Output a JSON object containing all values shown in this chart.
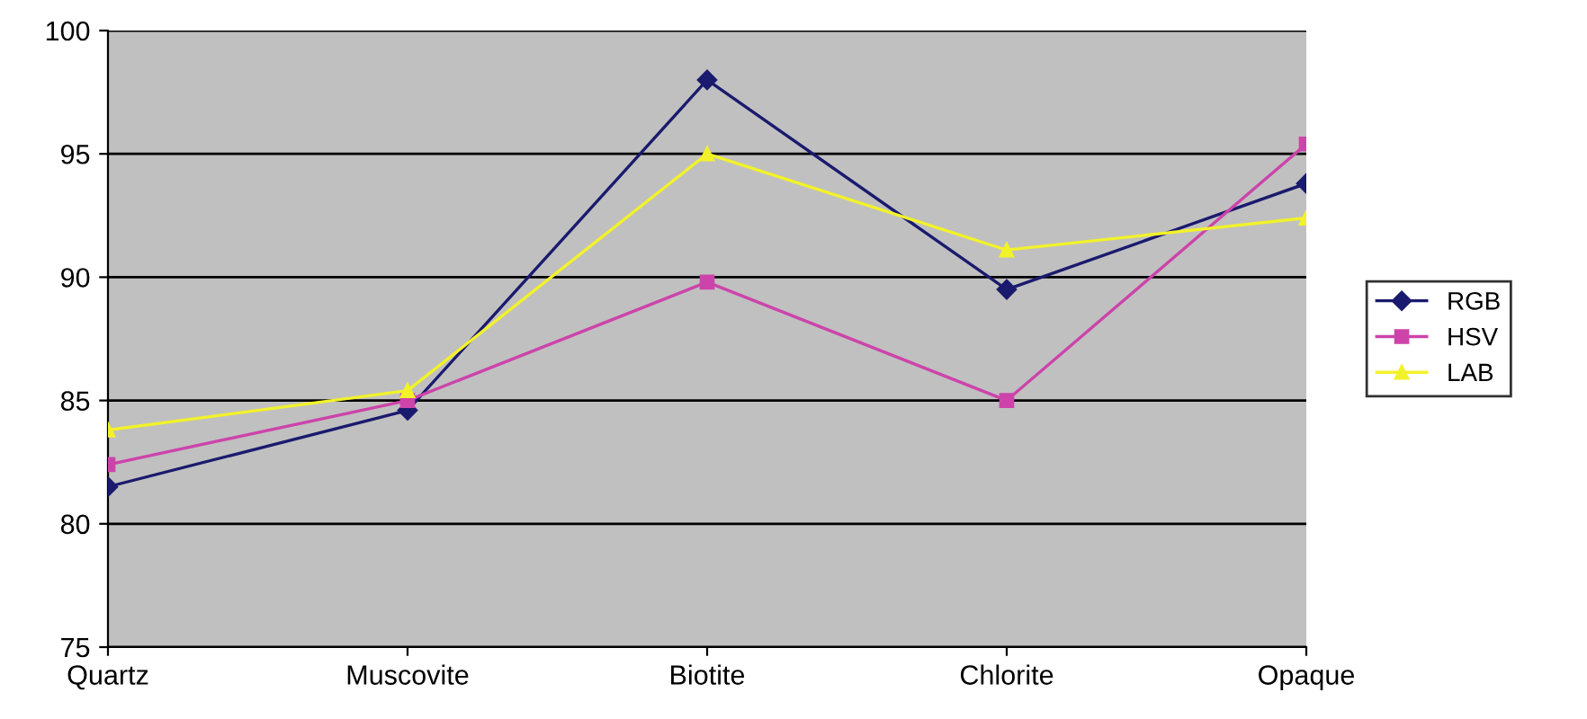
{
  "chart_data": {
    "type": "line",
    "categories": [
      "Quartz",
      "Muscovite",
      "Biotite",
      "Chlorite",
      "Opaque"
    ],
    "series": [
      {
        "name": "RGB",
        "color": "#1a1a6e",
        "marker": "diamond",
        "values": [
          81.5,
          84.6,
          98.0,
          89.5,
          93.8
        ]
      },
      {
        "name": "HSV",
        "color": "#cc44aa",
        "marker": "square",
        "values": [
          82.4,
          85.0,
          89.8,
          85.0,
          95.4
        ]
      },
      {
        "name": "LAB",
        "color": "#f2f22a",
        "marker": "triangle",
        "values": [
          83.8,
          85.4,
          95.0,
          91.1,
          92.4
        ]
      }
    ],
    "ylim": [
      75,
      100
    ],
    "yticks": [
      75,
      80,
      85,
      90,
      95,
      100
    ],
    "grid": "y",
    "legend": "right",
    "line_style": "solid"
  }
}
